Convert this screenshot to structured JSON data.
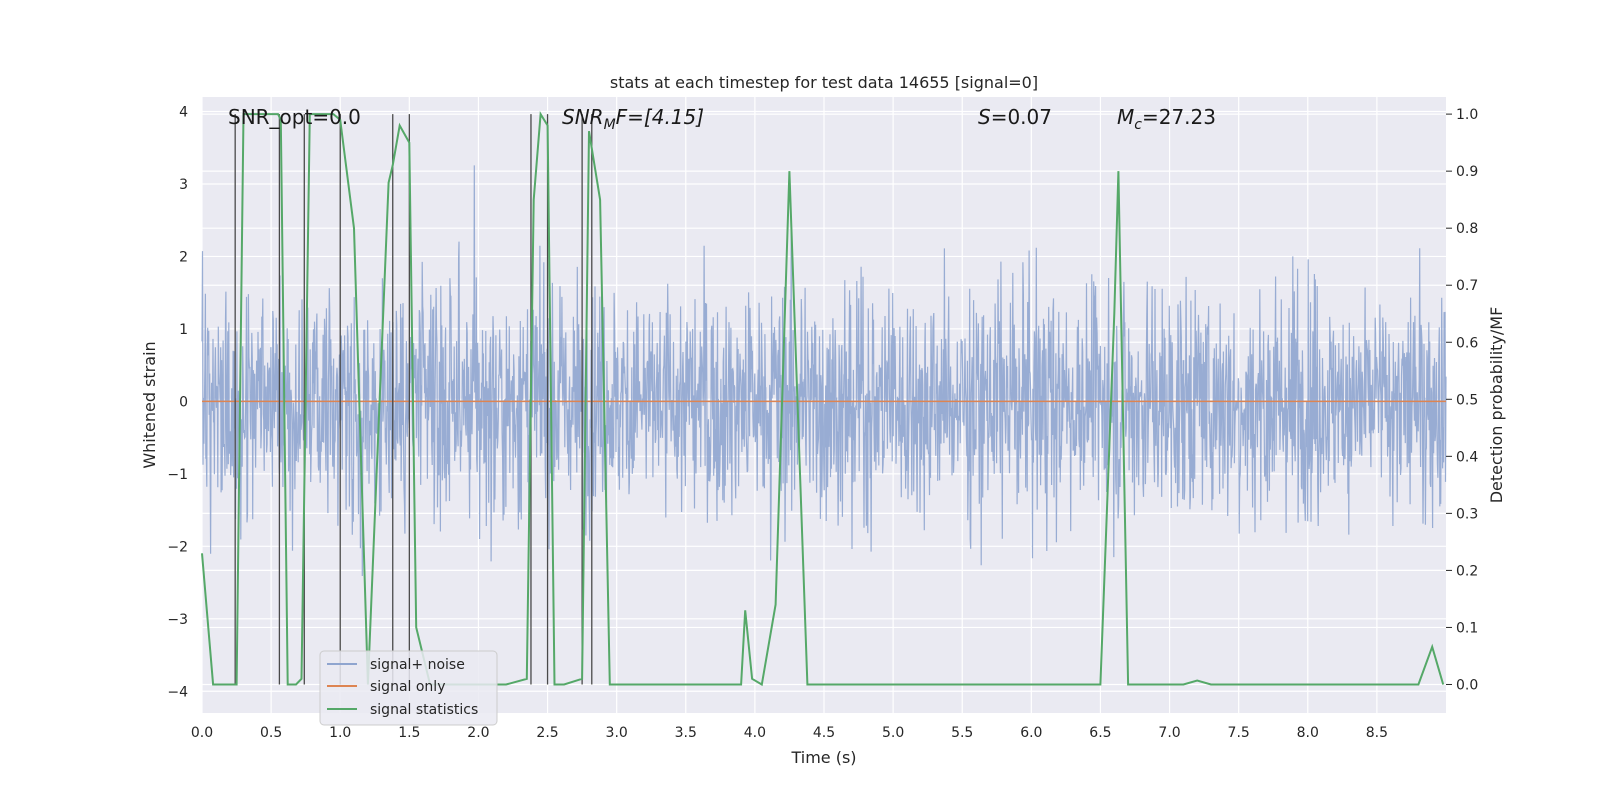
{
  "chart_data": {
    "type": "line",
    "title": "stats at each timestep for test data 14655 [signal=0]",
    "xlabel": "Time (s)",
    "ylabel": "Whitened strain",
    "y2label": "Detection probability/MF",
    "xlim": [
      0.0,
      9.0
    ],
    "ylim": [
      -4.3,
      4.2
    ],
    "y2lim": [
      -0.05,
      1.03
    ],
    "xticks": [
      "0.0",
      "0.5",
      "1.0",
      "1.5",
      "2.0",
      "2.5",
      "3.0",
      "3.5",
      "4.0",
      "4.5",
      "5.0",
      "5.5",
      "6.0",
      "6.5",
      "7.0",
      "7.5",
      "8.0",
      "8.5"
    ],
    "yticks": [
      "4",
      "3",
      "2",
      "1",
      "0",
      "−1",
      "−2",
      "−3",
      "−4"
    ],
    "y2ticks": [
      "1.0",
      "0.9",
      "0.8",
      "0.7",
      "0.6",
      "0.5",
      "0.4",
      "0.3",
      "0.2",
      "0.1",
      "0.0"
    ],
    "grid": true,
    "legend_placement": "lower left",
    "annotations": {
      "snr_opt": "SNR_opt=0.0",
      "snr_mf_main": "SNR",
      "snr_mf_sub": "M",
      "snr_mf_rest": "F=[4.15]",
      "s_main": "S",
      "s_rest": "=0.07",
      "mc_main": "M",
      "mc_sub": "c",
      "mc_rest": "=27.23"
    },
    "series": [
      {
        "name": "signal+ noise",
        "color": "#8fa5cf",
        "description_values": "whitened strain noise, amplitude about ±2 with peaks to ±3.7"
      },
      {
        "name": "signal only",
        "color": "#dd8452",
        "constant": 0.0
      },
      {
        "name": "signal statistics",
        "color": "#55a868",
        "x": [
          0.0,
          0.08,
          0.25,
          0.3,
          0.55,
          0.57,
          0.62,
          0.68,
          0.72,
          0.78,
          0.8,
          0.95,
          1.0,
          1.1,
          1.2,
          1.35,
          1.38,
          1.43,
          1.5,
          1.55,
          1.65,
          2.0,
          2.2,
          2.35,
          2.4,
          2.45,
          2.5,
          2.55,
          2.62,
          2.75,
          2.8,
          2.88,
          2.95,
          3.5,
          3.6,
          3.9,
          3.93,
          3.98,
          4.05,
          4.15,
          4.25,
          4.38,
          4.5,
          6.0,
          6.5,
          6.6,
          6.63,
          6.7,
          7.1,
          7.2,
          7.3,
          7.5,
          7.6,
          8.8,
          8.9,
          8.98
        ],
        "values": [
          0.23,
          0.0,
          0.0,
          1.0,
          1.0,
          0.99,
          0.0,
          0.0,
          0.01,
          1.0,
          1.0,
          1.0,
          0.99,
          0.8,
          0.0,
          0.88,
          0.91,
          0.98,
          0.95,
          0.1,
          0.0,
          0.0,
          0.0,
          0.01,
          0.85,
          1.0,
          0.98,
          0.0,
          0.0,
          0.01,
          0.97,
          0.85,
          0.0,
          0.0,
          0.0,
          0.0,
          0.13,
          0.01,
          0.0,
          0.14,
          0.9,
          0.0,
          0.0,
          0.0,
          0.0,
          0.65,
          0.9,
          0.0,
          0.0,
          0.007,
          0.0,
          0.0,
          0.0,
          0.0,
          0.066,
          0.0
        ]
      }
    ],
    "vertical_markers_x": [
      0.24,
      0.56,
      0.74,
      1.0,
      1.38,
      1.5,
      2.38,
      2.5,
      2.75,
      2.82
    ]
  }
}
